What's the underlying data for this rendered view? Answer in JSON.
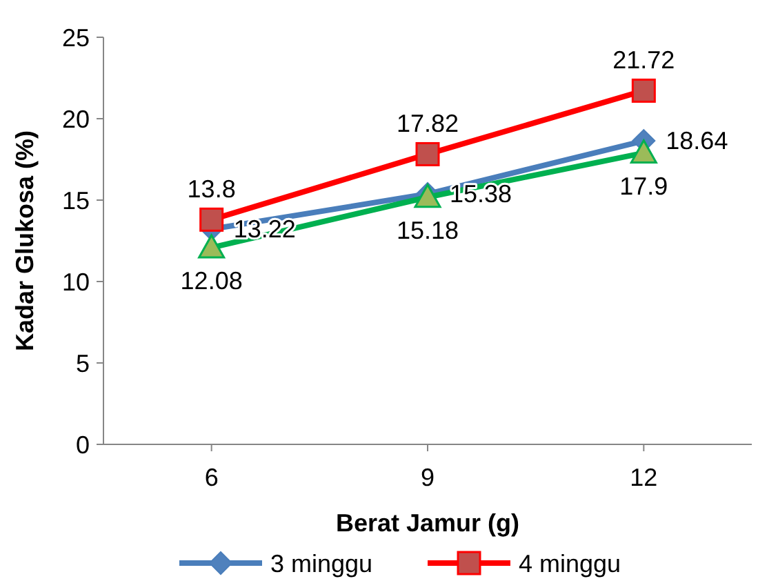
{
  "chart_data": {
    "type": "line",
    "xlabel": "Berat Jamur (g)",
    "ylabel": "Kadar Glukosa (%)",
    "categories": [
      "6",
      "9",
      "12"
    ],
    "ylim": [
      0,
      25
    ],
    "yticks": [
      0,
      5,
      10,
      15,
      20,
      25
    ],
    "grid": false,
    "legend": "bottom",
    "data_labels": true,
    "series": [
      {
        "name": "3 minggu",
        "color": "#4a7ebb",
        "marker": "diamond",
        "values": [
          13.22,
          15.38,
          18.64
        ]
      },
      {
        "name": "4 minggu",
        "color": "#ff0000",
        "marker": "square",
        "values": [
          13.8,
          17.82,
          21.72
        ]
      },
      {
        "color": "#00b050",
        "marker": "triangle",
        "values": [
          12.08,
          15.18,
          17.9
        ]
      }
    ]
  }
}
